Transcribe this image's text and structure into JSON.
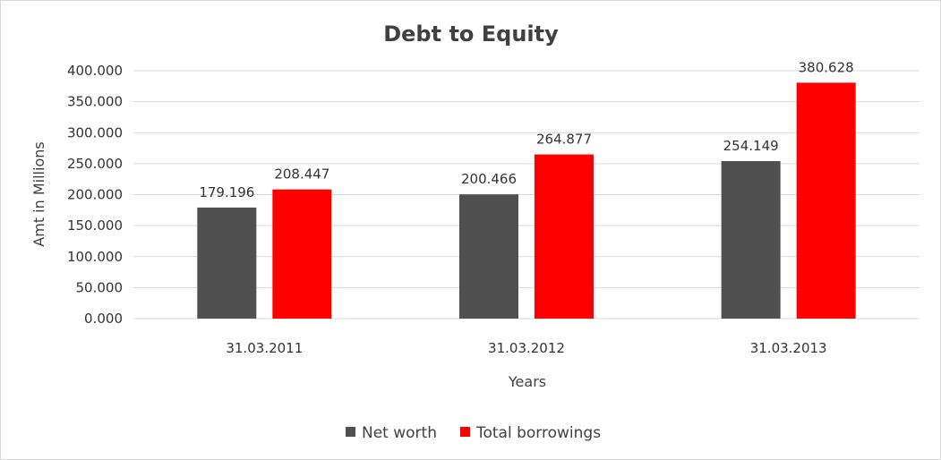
{
  "chart_data": {
    "type": "bar",
    "title": "Debt to Equity",
    "xlabel": "Years",
    "ylabel": "Amt in Millions",
    "categories": [
      "31.03.2011",
      "31.03.2012",
      "31.03.2013"
    ],
    "series": [
      {
        "name": "Net worth",
        "color": "#505050",
        "values": [
          179.196,
          200.466,
          254.149
        ]
      },
      {
        "name": "Total borrowings",
        "color": "#ff0000",
        "values": [
          208.447,
          264.877,
          380.628
        ]
      }
    ],
    "ylim": [
      0,
      400
    ],
    "ytick_step": 50,
    "ytick_labels": [
      "0.000",
      "50.000",
      "100.000",
      "150.000",
      "200.000",
      "250.000",
      "300.000",
      "350.000",
      "400.000"
    ],
    "data_labels": [
      [
        "179.196",
        "200.466",
        "254.149"
      ],
      [
        "208.447",
        "264.877",
        "380.628"
      ]
    ],
    "grid": "horizontal",
    "legend": "bottom"
  }
}
